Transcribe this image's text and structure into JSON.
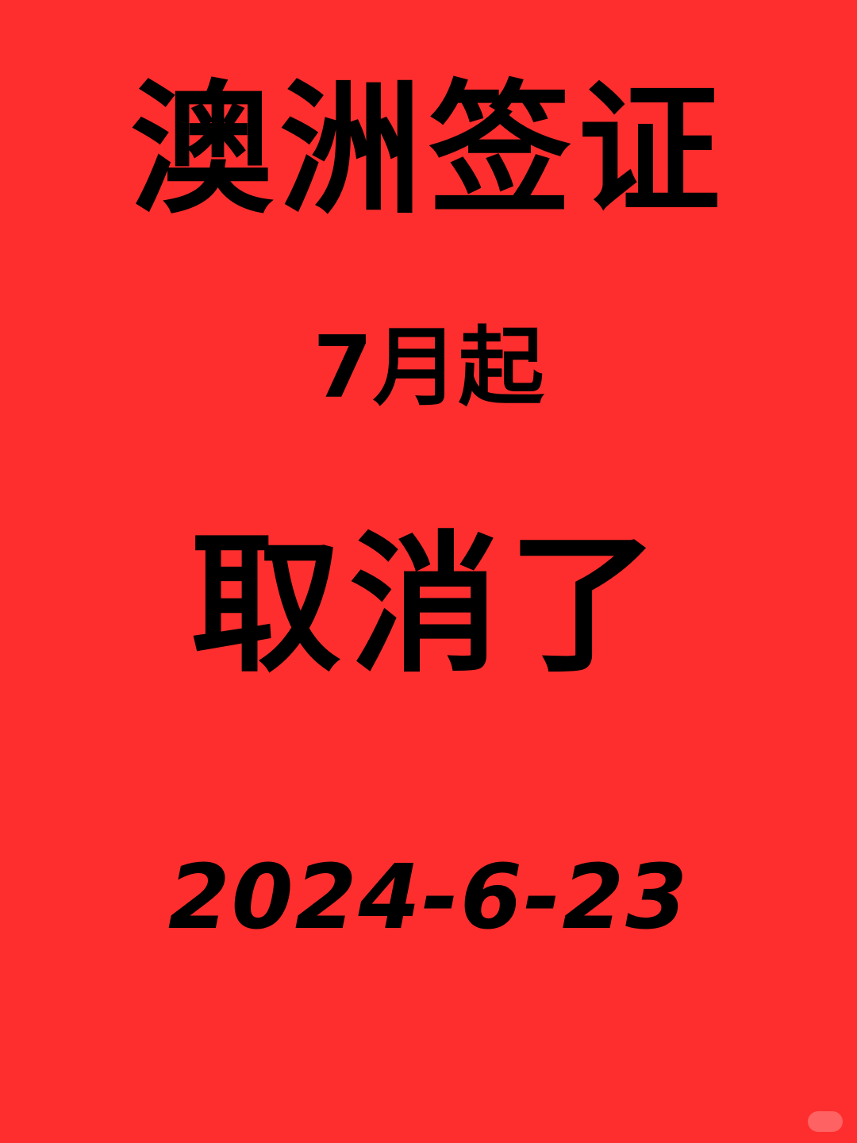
{
  "poster": {
    "background_color": "#fe2e2e",
    "text_color": "#000000",
    "title": "澳洲签证",
    "subtitle": "7月起",
    "headline": "取消了",
    "date": "2024-6-23"
  }
}
